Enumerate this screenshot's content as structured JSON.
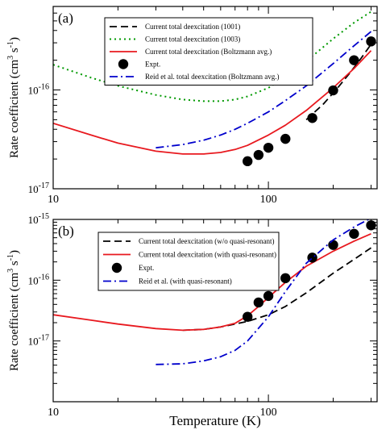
{
  "figure": {
    "xlabel": "Temperature (K)"
  },
  "chart_data": [
    {
      "type": "line",
      "panel_label": "(a)",
      "ylabel": "Rate coefficient (cm",
      "ylabel_sup": "3",
      "ylabel_mid": " s",
      "ylabel_sup2": "-1",
      "ylabel_end": ")",
      "xscale": "log",
      "yscale": "log",
      "xlim": [
        10,
        320
      ],
      "ylim": [
        1e-17,
        7e-16
      ],
      "x_ticks": [
        10,
        100
      ],
      "x_tick_labels": [
        "10",
        "100"
      ],
      "y_ticks": [
        1e-17,
        1e-16
      ],
      "y_tick_labels": [
        {
          "base": "10",
          "exp": "-17"
        },
        {
          "base": "10",
          "exp": "-16"
        }
      ],
      "legend": {
        "position": "top-center",
        "entries": [
          {
            "label": "Current total deexcitation (1001)",
            "color": "#000000",
            "style": "dashed"
          },
          {
            "label": "Current total deexcitation (1003)",
            "color": "#009900",
            "style": "dotted"
          },
          {
            "label": "Current total deexcitation (Boltzmann avg.)",
            "color": "#e8191f",
            "style": "solid"
          },
          {
            "label": "Expt.",
            "color": "#000000",
            "style": "marker"
          },
          {
            "label": "Reid et al. total deexcitation (Boltzmann avg.)",
            "color": "#0000cc",
            "style": "dashdot"
          }
        ]
      },
      "series": [
        {
          "name": "Current total deexcitation (1001)",
          "color": "#000000",
          "style": "dashed",
          "x": [
            150,
            180,
            210,
            240,
            270,
            300
          ],
          "y": [
            5e-17,
            7.2e-17,
            1.05e-16,
            1.5e-16,
            2.1e-16,
            2.9e-16
          ]
        },
        {
          "name": "Current total deexcitation (1003)",
          "color": "#009900",
          "style": "dotted",
          "x": [
            10,
            15,
            20,
            30,
            40,
            50,
            60,
            70,
            80,
            100,
            120,
            150,
            200,
            250,
            300
          ],
          "y": [
            1.8e-16,
            1.33e-16,
            1.1e-16,
            8.9e-17,
            8e-17,
            7.7e-17,
            7.7e-17,
            8e-17,
            8.6e-17,
            1.05e-16,
            1.35e-16,
            1.95e-16,
            3.3e-16,
            4.8e-16,
            6.2e-16
          ]
        },
        {
          "name": "Current total deexcitation (Boltzmann avg.)",
          "color": "#e8191f",
          "style": "solid",
          "x": [
            10,
            15,
            20,
            30,
            40,
            50,
            60,
            70,
            80,
            100,
            120,
            150,
            200,
            250,
            300
          ],
          "y": [
            4.6e-17,
            3.5e-17,
            2.9e-17,
            2.4e-17,
            2.25e-17,
            2.25e-17,
            2.33e-17,
            2.5e-17,
            2.75e-17,
            3.5e-17,
            4.4e-17,
            6.2e-17,
            1.05e-16,
            1.65e-16,
            2.5e-16
          ]
        },
        {
          "name": "Expt.",
          "color": "#000000",
          "style": "marker",
          "x": [
            80,
            90,
            100,
            120,
            160,
            200,
            250,
            300
          ],
          "y": [
            1.9e-17,
            2.2e-17,
            2.6e-17,
            3.2e-17,
            5.2e-17,
            9.9e-17,
            2e-16,
            3.1e-16
          ]
        },
        {
          "name": "Reid et al. total deexcitation (Boltzmann avg.)",
          "color": "#0000cc",
          "style": "dashdot",
          "x": [
            30,
            40,
            50,
            60,
            70,
            80,
            100,
            120,
            150,
            200,
            250,
            300
          ],
          "y": [
            2.6e-17,
            2.8e-17,
            3.1e-17,
            3.5e-17,
            4e-17,
            4.6e-17,
            6e-17,
            7.8e-17,
            1.1e-16,
            1.85e-16,
            2.8e-16,
            3.9e-16
          ]
        }
      ]
    },
    {
      "type": "line",
      "panel_label": "(b)",
      "ylabel": "Rate coefficient (cm",
      "ylabel_sup": "3",
      "ylabel_mid": " s",
      "ylabel_sup2": "-1",
      "ylabel_end": ")",
      "xscale": "log",
      "yscale": "log",
      "xlim": [
        10,
        320
      ],
      "ylim": [
        1e-18,
        1e-15
      ],
      "x_ticks": [
        10,
        100
      ],
      "x_tick_labels": [
        "10",
        "100"
      ],
      "y_ticks": [
        1e-17,
        1e-16,
        1e-15
      ],
      "y_tick_labels": [
        {
          "base": "10",
          "exp": "-17"
        },
        {
          "base": "10",
          "exp": "-16"
        },
        {
          "base": "10",
          "exp": "-15"
        }
      ],
      "legend": {
        "position": "top-center",
        "entries": [
          {
            "label": "Current total deexcitation (w/o quasi-resonant)",
            "color": "#000000",
            "style": "dashed"
          },
          {
            "label": "Current total deexcitation (with quasi-resonant)",
            "color": "#e8191f",
            "style": "solid"
          },
          {
            "label": "Expt.",
            "color": "#000000",
            "style": "marker"
          },
          {
            "label": "Reid et al. (with quasi-resonant)",
            "color": "#0000cc",
            "style": "dashdot"
          }
        ]
      },
      "series": [
        {
          "name": "Current total deexcitation (w/o quasi-resonant)",
          "color": "#000000",
          "style": "dashed",
          "x": [
            40,
            50,
            60,
            70,
            80,
            100,
            120,
            150,
            200,
            250,
            300
          ],
          "y": [
            1.5e-17,
            1.55e-17,
            1.7e-17,
            1.9e-17,
            2.1e-17,
            2.7e-17,
            3.7e-17,
            6.2e-17,
            1.3e-16,
            2.2e-16,
            3.4e-16
          ]
        },
        {
          "name": "Current total deexcitation (with quasi-resonant)",
          "color": "#e8191f",
          "style": "solid",
          "x": [
            10,
            15,
            20,
            30,
            40,
            50,
            60,
            70,
            80,
            90,
            100,
            120,
            150,
            200,
            250,
            300
          ],
          "y": [
            2.7e-17,
            2.2e-17,
            1.9e-17,
            1.6e-17,
            1.5e-17,
            1.55e-17,
            1.7e-17,
            1.95e-17,
            2.6e-17,
            3.7e-17,
            5.2e-17,
            9.2e-17,
            1.7e-16,
            3e-16,
            4.4e-16,
            5.8e-16
          ]
        },
        {
          "name": "Expt.",
          "color": "#000000",
          "style": "marker",
          "x": [
            80,
            90,
            100,
            120,
            160,
            200,
            250,
            300
          ],
          "y": [
            2.5e-17,
            4.3e-17,
            5.5e-17,
            1.08e-16,
            2.35e-16,
            3.8e-16,
            5.8e-16,
            8e-16
          ]
        },
        {
          "name": "Reid et al. (with quasi-resonant)",
          "color": "#0000cc",
          "style": "dashdot",
          "x": [
            30,
            40,
            50,
            60,
            70,
            80,
            100,
            120,
            150,
            200,
            250,
            300
          ],
          "y": [
            4.1e-18,
            4.2e-18,
            4.7e-18,
            5.5e-18,
            7e-18,
            1e-17,
            2.5e-17,
            6.5e-17,
            1.9e-16,
            4.6e-16,
            7.5e-16,
            1.05e-15
          ]
        }
      ]
    }
  ]
}
